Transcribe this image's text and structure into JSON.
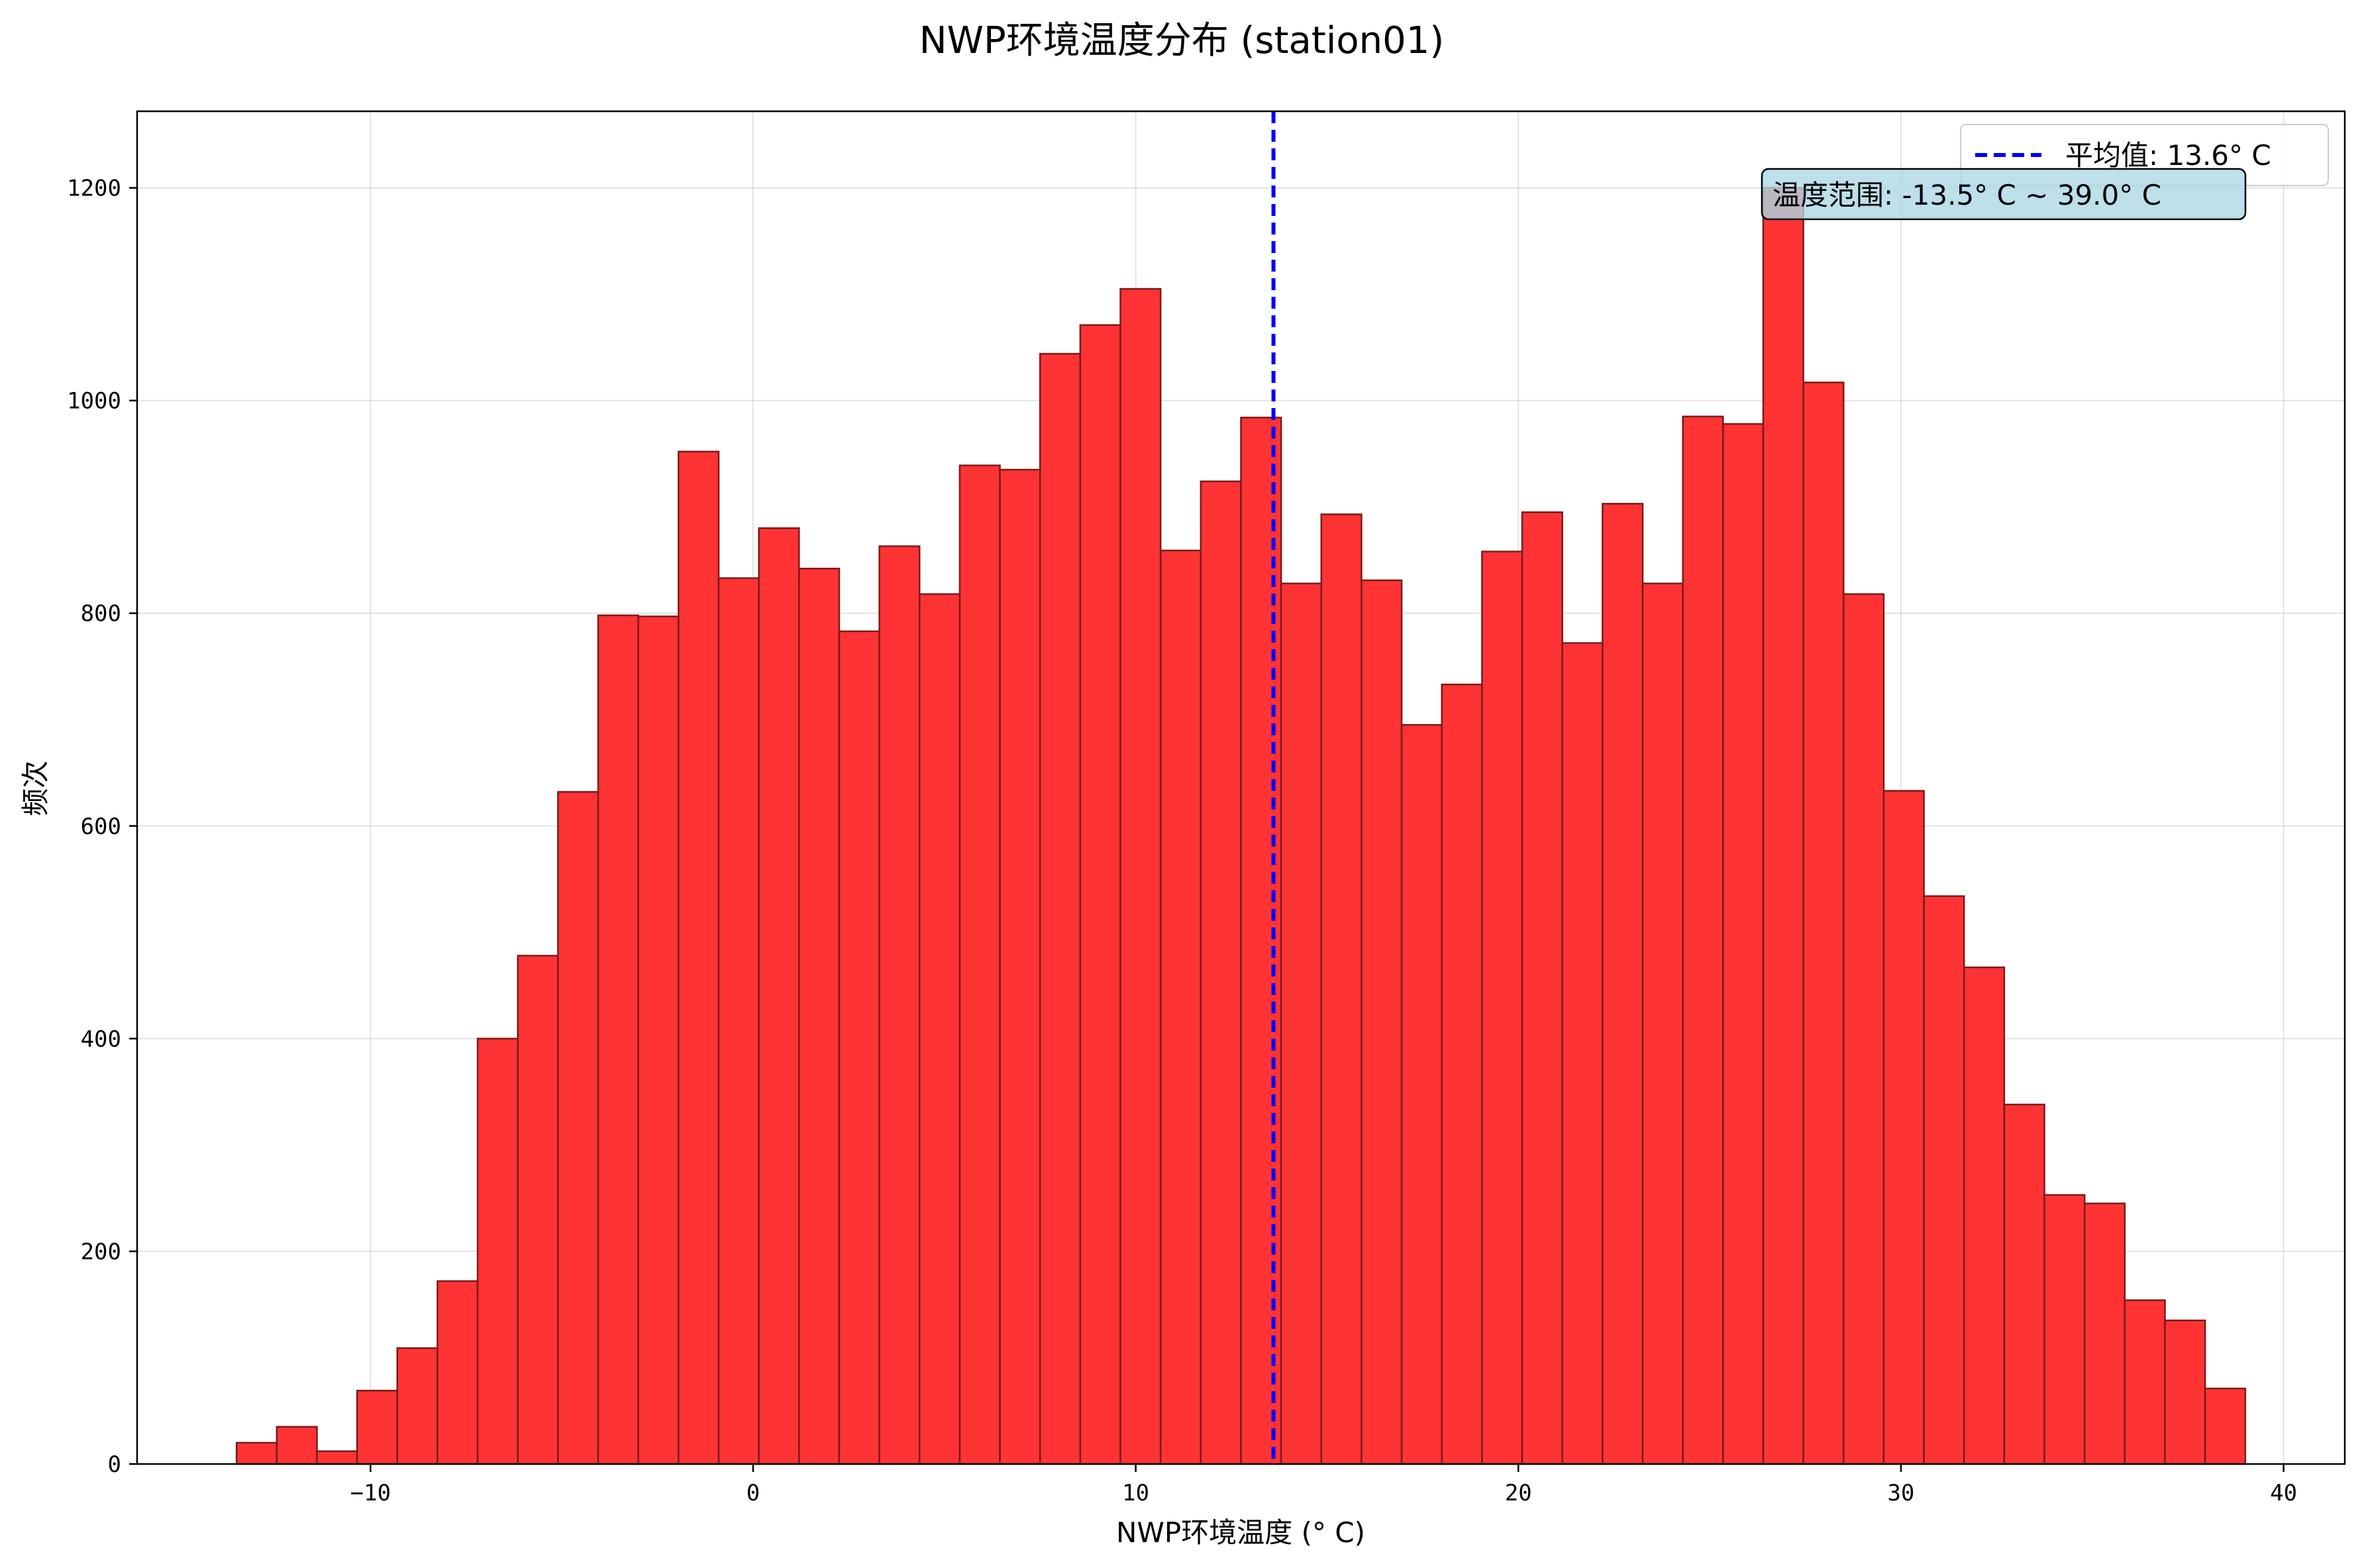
{
  "chart_data": {
    "type": "bar",
    "title": "NWP环境温度分布 (station01)",
    "xlabel": "NWP环境温度 (° C)",
    "ylabel": "频次",
    "xlim": [
      -16.1,
      41.6
    ],
    "ylim": [
      0,
      1272
    ],
    "xticks": [
      -10,
      0,
      10,
      20,
      30,
      40
    ],
    "xtick_labels": [
      "−10",
      "0",
      "10",
      "20",
      "30",
      "40"
    ],
    "yticks": [
      0,
      200,
      400,
      600,
      800,
      1000,
      1200
    ],
    "ytick_labels": [
      "0",
      "200",
      "400",
      "600",
      "800",
      "1000",
      "1200"
    ],
    "grid": true,
    "legend_position": "top-right",
    "bar_color": "#ff3333",
    "bar_edge_color": "#7a1a1a",
    "mean_line_color": "#0000ff",
    "annotation_bg": "#add8e6",
    "bin_start": -13.5,
    "bin_width": 1.05,
    "values": [
      20,
      35,
      12,
      69,
      109,
      172,
      400,
      478,
      632,
      798,
      797,
      952,
      833,
      880,
      842,
      783,
      863,
      818,
      939,
      935,
      1044,
      1071,
      1105,
      859,
      924,
      984,
      828,
      893,
      831,
      695,
      733,
      858,
      895,
      772,
      903,
      828,
      985,
      978,
      1200,
      1017,
      818,
      633,
      534,
      467,
      338,
      253,
      245,
      154,
      135,
      71
    ],
    "mean": 13.6,
    "legend": {
      "mean_label": "平均值: 13.6° C"
    },
    "annotation": {
      "text": "温度范围: -13.5° C ~ 39.0° C"
    }
  }
}
